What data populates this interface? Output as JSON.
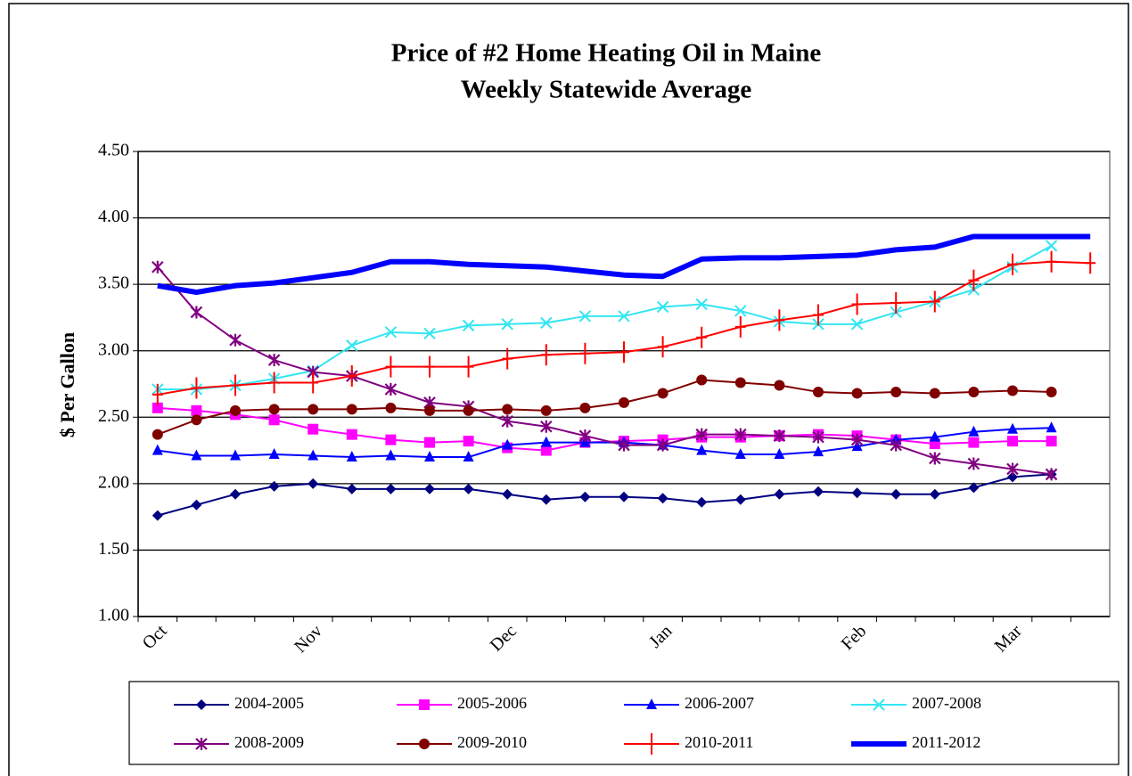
{
  "chart_data": {
    "type": "line",
    "title": "Price of #2 Home Heating Oil in Maine",
    "subtitle": "Weekly Statewide Average",
    "y_label": "$ Per Gallon",
    "categories": [
      "Oct",
      null,
      null,
      null,
      "Nov",
      null,
      null,
      null,
      null,
      "Dec",
      null,
      null,
      null,
      "Jan",
      null,
      null,
      null,
      null,
      "Feb",
      null,
      null,
      null,
      "Mar",
      null,
      null
    ],
    "ylim": [
      1.0,
      4.5
    ],
    "yticks": [
      {
        "value": 1.0,
        "label": "1.00"
      },
      {
        "value": 1.5,
        "label": "1.50"
      },
      {
        "value": 2.0,
        "label": "2.00"
      },
      {
        "value": 2.5,
        "label": "2.50"
      },
      {
        "value": 3.0,
        "label": "3.00"
      },
      {
        "value": 3.5,
        "label": "3.50"
      },
      {
        "value": 4.0,
        "label": "4.00"
      },
      {
        "value": 4.5,
        "label": "4.50"
      }
    ],
    "grid": true,
    "legend": "bottom",
    "series": [
      {
        "name": "2004-2005",
        "color": "#000080",
        "marker": "diamond",
        "line_width": 2,
        "values": [
          1.76,
          1.84,
          1.92,
          1.98,
          2.0,
          1.96,
          1.96,
          1.96,
          1.96,
          1.92,
          1.88,
          1.9,
          1.9,
          1.89,
          1.86,
          1.88,
          1.92,
          1.94,
          1.93,
          1.92,
          1.92,
          1.97,
          2.05,
          2.07,
          null
        ]
      },
      {
        "name": "2005-2006",
        "color": "#ff00ff",
        "marker": "square",
        "line_width": 2,
        "values": [
          2.57,
          2.55,
          2.52,
          2.48,
          2.41,
          2.37,
          2.33,
          2.31,
          2.32,
          2.27,
          2.25,
          2.31,
          2.32,
          2.33,
          2.35,
          2.35,
          2.36,
          2.37,
          2.36,
          2.33,
          2.3,
          2.31,
          2.32,
          2.32,
          null
        ]
      },
      {
        "name": "2006-2007",
        "color": "#0000ff",
        "marker": "triangle",
        "line_width": 2,
        "values": [
          2.25,
          2.21,
          2.21,
          2.22,
          2.21,
          2.2,
          2.21,
          2.2,
          2.2,
          2.29,
          2.31,
          2.31,
          2.31,
          2.29,
          2.25,
          2.22,
          2.22,
          2.24,
          2.28,
          2.33,
          2.35,
          2.39,
          2.41,
          2.42,
          null
        ]
      },
      {
        "name": "2007-2008",
        "color": "#33e6f2",
        "marker": "x",
        "line_width": 2,
        "values": [
          2.71,
          2.71,
          2.74,
          2.79,
          2.85,
          3.04,
          3.14,
          3.13,
          3.19,
          3.2,
          3.21,
          3.26,
          3.26,
          3.33,
          3.35,
          3.3,
          3.22,
          3.2,
          3.2,
          3.29,
          3.37,
          3.46,
          3.63,
          3.79,
          null
        ]
      },
      {
        "name": "2008-2009",
        "color": "#800080",
        "marker": "star",
        "line_width": 2,
        "values": [
          3.63,
          3.29,
          3.08,
          2.93,
          2.84,
          2.81,
          2.71,
          2.61,
          2.58,
          2.47,
          2.43,
          2.36,
          2.29,
          2.29,
          2.37,
          2.37,
          2.36,
          2.35,
          2.33,
          2.29,
          2.19,
          2.15,
          2.11,
          2.07,
          null
        ]
      },
      {
        "name": "2009-2010",
        "color": "#800000",
        "marker": "circle",
        "line_width": 2,
        "values": [
          2.37,
          2.48,
          2.55,
          2.56,
          2.56,
          2.56,
          2.57,
          2.55,
          2.55,
          2.56,
          2.55,
          2.57,
          2.61,
          2.68,
          2.78,
          2.76,
          2.74,
          2.69,
          2.68,
          2.69,
          2.68,
          2.69,
          2.7,
          2.69,
          null
        ]
      },
      {
        "name": "2010-2011",
        "color": "#ff0000",
        "marker": "plus",
        "line_width": 2,
        "values": [
          2.67,
          2.72,
          2.74,
          2.76,
          2.76,
          2.81,
          2.88,
          2.88,
          2.88,
          2.94,
          2.97,
          2.98,
          2.99,
          3.03,
          3.1,
          3.18,
          3.23,
          3.27,
          3.35,
          3.36,
          3.37,
          3.53,
          3.65,
          3.67,
          3.66
        ]
      },
      {
        "name": "2011-2012",
        "color": "#0000ff",
        "marker": "none",
        "line_width": 6,
        "values": [
          3.49,
          3.44,
          3.49,
          3.51,
          3.55,
          3.59,
          3.67,
          3.67,
          3.65,
          3.64,
          3.63,
          3.6,
          3.57,
          3.56,
          3.69,
          3.7,
          3.7,
          3.71,
          3.72,
          3.76,
          3.78,
          3.86,
          3.86,
          3.86,
          3.86
        ]
      }
    ]
  }
}
